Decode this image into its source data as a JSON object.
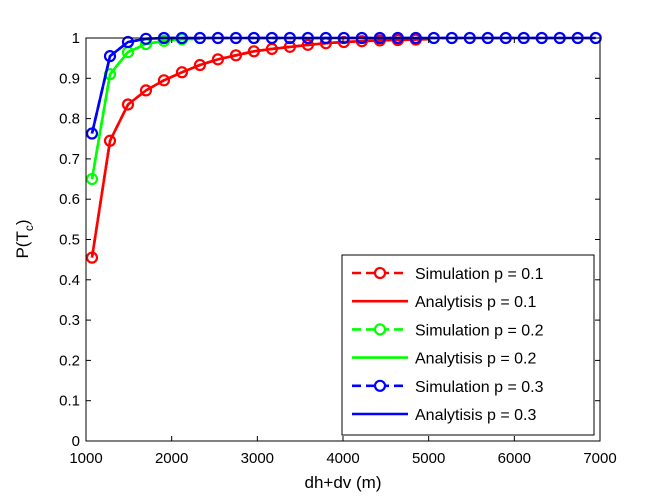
{
  "chart_data": {
    "type": "line",
    "xlabel": "dh+dv (m)",
    "ylabel": "P(T_c)",
    "ylabel_main": "P(T",
    "ylabel_sub": "c",
    "ylabel_close": ")",
    "xlim": [
      1000,
      7000
    ],
    "ylim": [
      0,
      1
    ],
    "xticks": [
      1000,
      2000,
      3000,
      4000,
      5000,
      6000,
      7000
    ],
    "yticks": [
      0,
      0.1,
      0.2,
      0.3,
      0.4,
      0.5,
      0.6,
      0.7,
      0.8,
      0.9,
      1
    ],
    "ytick_labels": [
      "0",
      "0.1",
      "0.2",
      "0.3",
      "0.4",
      "0.5",
      "0.6",
      "0.7",
      "0.8",
      "0.9",
      "1"
    ],
    "grid": false,
    "legend_position": "bottom-right",
    "series": [
      {
        "name": "Analytisis p = 0.1",
        "color": "#ff0000",
        "style": "solid",
        "marker": "none",
        "x": [
          1070,
          1280,
          1490,
          1700,
          1910,
          2120,
          2330,
          2540,
          2750,
          2960,
          3170,
          3380,
          3590,
          3800,
          4010,
          4220,
          4430,
          4640,
          4850,
          5000
        ],
        "y": [
          0.455,
          0.745,
          0.835,
          0.87,
          0.895,
          0.915,
          0.933,
          0.947,
          0.957,
          0.967,
          0.973,
          0.978,
          0.983,
          0.987,
          0.99,
          0.992,
          0.994,
          0.995,
          0.996,
          0.997
        ]
      },
      {
        "name": "Simulation p = 0.1",
        "color": "#ff0000",
        "style": "dashed",
        "marker": "circle",
        "x": [
          1070,
          1280,
          1490,
          1700,
          1910,
          2120,
          2330,
          2540,
          2750,
          2960,
          3170,
          3380,
          3590,
          3800,
          4010,
          4220,
          4430,
          4640,
          4850
        ],
        "y": [
          0.455,
          0.745,
          0.835,
          0.87,
          0.895,
          0.915,
          0.933,
          0.947,
          0.957,
          0.967,
          0.973,
          0.978,
          0.983,
          0.987,
          0.99,
          0.992,
          0.994,
          0.995,
          0.996
        ]
      },
      {
        "name": "Analytisis p = 0.2",
        "color": "#00ff00",
        "style": "solid",
        "marker": "none",
        "x": [
          1070,
          1280,
          1490,
          1700,
          1910,
          2120,
          2330
        ],
        "y": [
          0.65,
          0.91,
          0.965,
          0.985,
          0.993,
          0.997,
          0.998
        ]
      },
      {
        "name": "Simulation p = 0.2",
        "color": "#00ff00",
        "style": "dashed",
        "marker": "circle",
        "x": [
          1070,
          1280,
          1490,
          1700,
          1910,
          2120
        ],
        "y": [
          0.65,
          0.91,
          0.965,
          0.985,
          0.993,
          0.997
        ]
      },
      {
        "name": "Analytisis p = 0.3",
        "color": "#0000ff",
        "style": "solid",
        "marker": "none",
        "x": [
          1070,
          1280,
          1490,
          1700,
          1910,
          2120,
          2330,
          2540,
          2750,
          2960,
          3170,
          3380,
          3590,
          3800,
          4010,
          4220,
          4430,
          4640,
          4850,
          5060,
          5270,
          5480,
          5690,
          5900,
          6110,
          6320,
          6530,
          6740,
          6950
        ],
        "y": [
          0.763,
          0.955,
          0.99,
          0.998,
          1,
          1,
          1,
          1,
          1,
          1,
          1,
          1,
          1,
          1,
          1,
          1,
          1,
          1,
          1,
          1,
          1,
          1,
          1,
          1,
          1,
          1,
          1,
          1,
          1
        ]
      },
      {
        "name": "Simulation p = 0.3",
        "color": "#0000ff",
        "style": "dashed",
        "marker": "circle",
        "x": [
          1070,
          1280,
          1490,
          1700,
          1910,
          2120,
          2330,
          2540,
          2750,
          2960,
          3170,
          3380,
          3590,
          3800,
          4010,
          4220,
          4430,
          4640,
          4850,
          5060,
          5270,
          5480,
          5690,
          5900,
          6110,
          6320,
          6530,
          6740,
          6950
        ],
        "y": [
          0.763,
          0.955,
          0.99,
          0.998,
          1,
          1,
          1,
          1,
          1,
          1,
          1,
          1,
          1,
          1,
          1,
          1,
          1,
          1,
          1,
          1,
          1,
          1,
          1,
          1,
          1,
          1,
          1,
          1,
          1
        ]
      }
    ],
    "legend": [
      {
        "label": "Simulation p = 0.1",
        "color": "#ff0000",
        "style": "dashed",
        "marker": "circle"
      },
      {
        "label": "Analytisis p = 0.1",
        "color": "#ff0000",
        "style": "solid",
        "marker": "none"
      },
      {
        "label": "Simulation p = 0.2",
        "color": "#00ff00",
        "style": "dashed",
        "marker": "circle"
      },
      {
        "label": "Analytisis p = 0.2",
        "color": "#00ff00",
        "style": "solid",
        "marker": "none"
      },
      {
        "label": "Simulation p = 0.3",
        "color": "#0000ff",
        "style": "dashed",
        "marker": "circle"
      },
      {
        "label": "Analytisis p = 0.3",
        "color": "#0000ff",
        "style": "solid",
        "marker": "none"
      }
    ]
  }
}
